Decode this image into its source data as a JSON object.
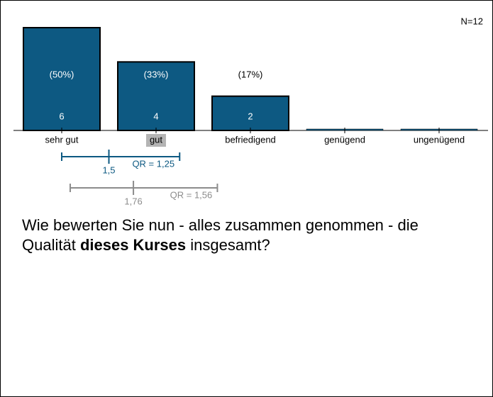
{
  "chart_data": {
    "type": "bar",
    "annotation": "N=12",
    "categories": [
      "sehr gut",
      "gut",
      "befriedigend",
      "genügend",
      "ungenügend"
    ],
    "values": [
      6,
      4,
      2,
      0,
      0
    ],
    "value_labels": [
      "(50%)",
      "(33%)",
      "(17%)",
      null,
      null
    ],
    "color": "#0d5982",
    "ylim": [
      0,
      6
    ],
    "intervals": [
      {
        "color": "#0d5982",
        "lower": 1,
        "median": {
          "value": 1.5,
          "label": "1,5"
        },
        "upper": 2.25,
        "qr_label": "QR = 1,25"
      },
      {
        "color": "#8c8c8c",
        "lower": 1.09,
        "median": {
          "value": 1.76,
          "label": "1,76"
        },
        "upper": 2.65,
        "qr_label": "QR = 1,56"
      }
    ]
  },
  "question": [
    "Wie bewerten Sie nun - alles zusammen genommen - die Qualität ",
    "dieses Kurses",
    " insgesamt?"
  ]
}
